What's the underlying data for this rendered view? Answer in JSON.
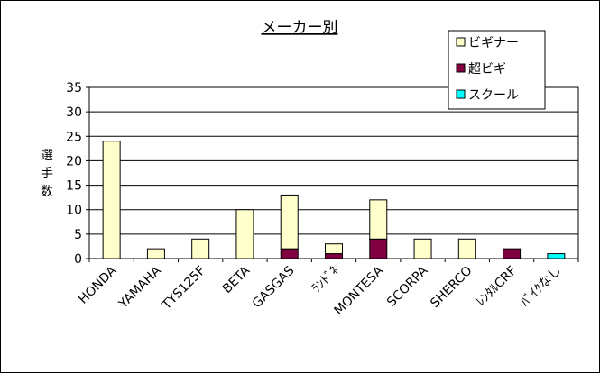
{
  "chart_data": {
    "type": "bar",
    "stacked": true,
    "title": "メーカー別",
    "ylabel": "選手数",
    "xlabel": "",
    "ylim": [
      0,
      35
    ],
    "yticks": [
      0,
      5,
      10,
      15,
      20,
      25,
      30,
      35
    ],
    "grid": true,
    "legend_position": "top-right",
    "categories": [
      "HONDA",
      "YAMAHA",
      "TYS125F",
      "BETA",
      "GASGAS",
      "ﾗﾝﾄﾞﾈ",
      "MONTESA",
      "SCORPA",
      "SHERCO",
      "ﾚﾝﾀﾙCRF",
      "ﾊﾞｲｸなし"
    ],
    "series": [
      {
        "name": "超ビギ",
        "color": "#800040",
        "values": [
          0,
          0,
          0,
          0,
          2,
          1,
          4,
          0,
          0,
          2,
          0
        ]
      },
      {
        "name": "スクール",
        "color": "#00FFFF",
        "values": [
          0,
          0,
          0,
          0,
          0,
          0,
          0,
          0,
          0,
          0,
          1
        ]
      },
      {
        "name": "ビギナー",
        "color": "#FFFFCC",
        "values": [
          24,
          2,
          4,
          10,
          11,
          2,
          8,
          4,
          4,
          0,
          0
        ]
      }
    ],
    "legend_order": [
      "ビギナー",
      "超ビギ",
      "スクール"
    ]
  }
}
